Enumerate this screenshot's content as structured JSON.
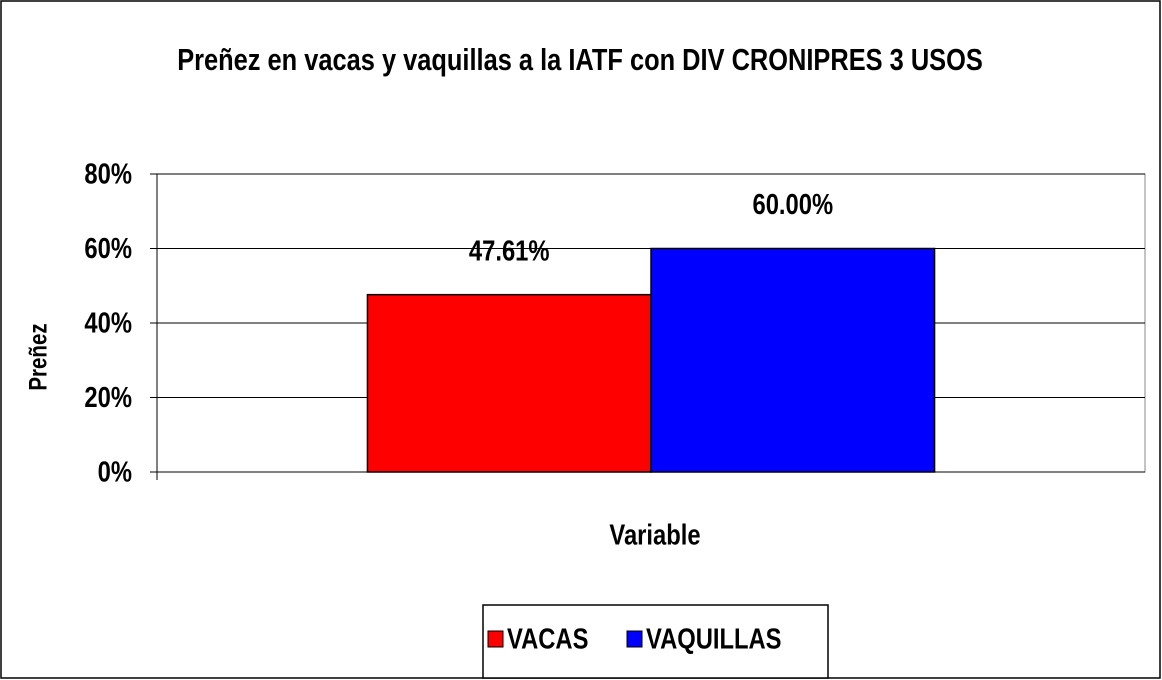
{
  "chart_data": {
    "type": "bar",
    "title": "Preñez en vacas y vaquillas a la IATF con DIV CRONIPRES 3 USOS",
    "x_label": "Variable",
    "y_label": "Preñez",
    "categories": [
      null
    ],
    "series": [
      {
        "name": "VACAS",
        "color": "#ff0000",
        "values": [
          47.61
        ],
        "value_labels": [
          "47.61%"
        ]
      },
      {
        "name": "VAQUILLAS",
        "color": "#0000ff",
        "values": [
          60.0
        ],
        "value_labels": [
          "60.00%"
        ]
      }
    ],
    "ylim": [
      0,
      80
    ],
    "yticks": [
      {
        "value": 0,
        "label": "0%"
      },
      {
        "value": 20,
        "label": "20%"
      },
      {
        "value": 40,
        "label": "40%"
      },
      {
        "value": 60,
        "label": "60%"
      },
      {
        "value": 80,
        "label": "80%"
      }
    ],
    "grid": true,
    "legend": "bottom"
  }
}
